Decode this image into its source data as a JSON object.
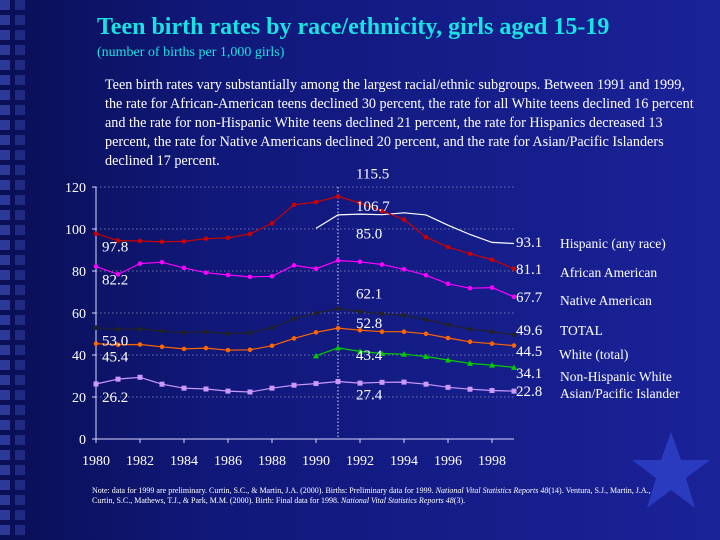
{
  "title": "Teen birth rates by race/ethnicity, girls aged 15-19",
  "subtitle": "(number of births per 1,000 girls)",
  "intro": "Teen birth rates vary substantially among the largest racial/ethnic subgroups.  Between 1991 and 1999, the rate for African-American teens declined 30 percent, the rate for all White teens declined 16 percent and the rate for non-Hispanic White teens declined 21 percent, the rate for Hispanics decreased 13 percent, the rate for Native Americans declined 20 percent, and the rate for Asian/Pacific Islanders declined 17 percent.",
  "note": {
    "part1": "Note: data for 1999 are preliminary.  Curtin, S.C., & Martin, J.A. (2000). Births: Preliminary data for 1999. ",
    "journal1": "National Vital Statistics Reports 48",
    "part2": "(14).  Ventura, S.J., Martin, J.A., Curtin, S.C., Mathews, T.J., & Park, M.M. (2000). Birth: Final data for 1998. ",
    "journal2": "National Vital Statistics Reports 48",
    "part3": "(3)."
  },
  "chart_data": {
    "type": "line",
    "xlim": [
      1980,
      1999
    ],
    "ylim": [
      0,
      120
    ],
    "yticks": [
      0,
      20,
      40,
      60,
      80,
      100,
      120
    ],
    "xticks": [
      1980,
      1982,
      1984,
      1986,
      1988,
      1990,
      1992,
      1994,
      1996,
      1998
    ],
    "grid": "horizontal dotted",
    "reference_line_x": 1991,
    "series": [
      {
        "name": "Hispanic (any race)",
        "color": "#ffffff",
        "marker": "none",
        "x": [
          1990,
          1991,
          1992,
          1993,
          1994,
          1995,
          1996,
          1997,
          1998,
          1999
        ],
        "y": [
          100.3,
          106.7,
          107.1,
          106.8,
          107.7,
          106.7,
          101.8,
          97.4,
          93.6,
          93.1
        ],
        "labels": [
          {
            "x": 1991,
            "text": "106.7"
          },
          {
            "x": 1999,
            "text": "93.1"
          }
        ]
      },
      {
        "name": "African American",
        "color": "#cc0000",
        "marker": "dot",
        "x": [
          1980,
          1981,
          1982,
          1983,
          1984,
          1985,
          1986,
          1987,
          1988,
          1989,
          1990,
          1991,
          1992,
          1993,
          1994,
          1995,
          1996,
          1997,
          1998,
          1999
        ],
        "y": [
          97.8,
          94.5,
          94.3,
          93.9,
          94.1,
          95.4,
          95.8,
          97.6,
          102.7,
          111.5,
          112.8,
          115.5,
          112.4,
          108.6,
          104.5,
          96.1,
          91.4,
          88.2,
          85.4,
          81.1
        ],
        "labels": [
          {
            "x": 1980,
            "text": "97.8"
          },
          {
            "x": 1991,
            "text": "115.5"
          },
          {
            "x": 1999,
            "text": "81.1"
          }
        ]
      },
      {
        "name": "Native American",
        "color": "#ff00ff",
        "marker": "dot",
        "x": [
          1980,
          1981,
          1982,
          1983,
          1984,
          1985,
          1986,
          1987,
          1988,
          1989,
          1990,
          1991,
          1992,
          1993,
          1994,
          1995,
          1996,
          1997,
          1998,
          1999
        ],
        "y": [
          82.2,
          78.4,
          83.5,
          84.2,
          81.5,
          79.2,
          78.1,
          77.2,
          77.5,
          82.7,
          81.1,
          85.0,
          84.4,
          83.1,
          80.8,
          78.0,
          73.9,
          71.8,
          72.1,
          67.7
        ],
        "labels": [
          {
            "x": 1980,
            "text": "82.2"
          },
          {
            "x": 1991,
            "text": "85.0"
          },
          {
            "x": 1999,
            "text": "67.7"
          }
        ]
      },
      {
        "name": "TOTAL",
        "color": "#222222",
        "marker": "dot",
        "x": [
          1980,
          1981,
          1982,
          1983,
          1984,
          1985,
          1986,
          1987,
          1988,
          1989,
          1990,
          1991,
          1992,
          1993,
          1994,
          1995,
          1996,
          1997,
          1998,
          1999
        ],
        "y": [
          53.0,
          52.2,
          52.4,
          51.4,
          50.6,
          51.0,
          50.2,
          50.6,
          53.0,
          57.3,
          59.9,
          62.1,
          60.7,
          59.6,
          58.9,
          56.8,
          54.4,
          52.3,
          51.1,
          49.6
        ],
        "labels": [
          {
            "x": 1980,
            "text": "53.0"
          },
          {
            "x": 1991,
            "text": "62.1"
          },
          {
            "x": 1999,
            "text": "49.6"
          }
        ]
      },
      {
        "name": "White (total)",
        "color": "#ff6600",
        "marker": "dot",
        "x": [
          1980,
          1981,
          1982,
          1983,
          1984,
          1985,
          1986,
          1987,
          1988,
          1989,
          1990,
          1991,
          1992,
          1993,
          1994,
          1995,
          1996,
          1997,
          1998,
          1999
        ],
        "y": [
          45.4,
          44.9,
          45.0,
          43.9,
          42.9,
          43.3,
          42.3,
          42.5,
          44.4,
          47.9,
          50.8,
          52.8,
          51.8,
          51.1,
          51.1,
          50.1,
          48.1,
          46.3,
          45.4,
          44.5
        ],
        "labels": [
          {
            "x": 1980,
            "text": "45.4"
          },
          {
            "x": 1991,
            "text": "52.8"
          },
          {
            "x": 1999,
            "text": "44.5"
          }
        ]
      },
      {
        "name": "Non-Hispanic White",
        "color": "#00cc00",
        "marker": "triangle",
        "x": [
          1990,
          1991,
          1992,
          1993,
          1994,
          1995,
          1996,
          1997,
          1998,
          1999
        ],
        "y": [
          39.6,
          43.4,
          41.7,
          40.7,
          40.4,
          39.3,
          37.6,
          36.0,
          35.2,
          34.1
        ],
        "labels": [
          {
            "x": 1991,
            "text": "43.4"
          },
          {
            "x": 1999,
            "text": "34.1"
          }
        ]
      },
      {
        "name": "Asian/Pacific Islander",
        "color": "#cc99ff",
        "marker": "square",
        "x": [
          1980,
          1981,
          1982,
          1983,
          1984,
          1985,
          1986,
          1987,
          1988,
          1989,
          1990,
          1991,
          1992,
          1993,
          1994,
          1995,
          1996,
          1997,
          1998,
          1999
        ],
        "y": [
          26.2,
          28.5,
          29.4,
          26.1,
          24.2,
          23.8,
          22.8,
          22.4,
          24.2,
          25.6,
          26.4,
          27.4,
          26.6,
          27.0,
          27.1,
          26.1,
          24.6,
          23.7,
          23.1,
          22.8
        ],
        "labels": [
          {
            "x": 1980,
            "text": "26.2"
          },
          {
            "x": 1991,
            "text": "27.4"
          },
          {
            "x": 1999,
            "text": "22.8"
          }
        ]
      }
    ]
  }
}
